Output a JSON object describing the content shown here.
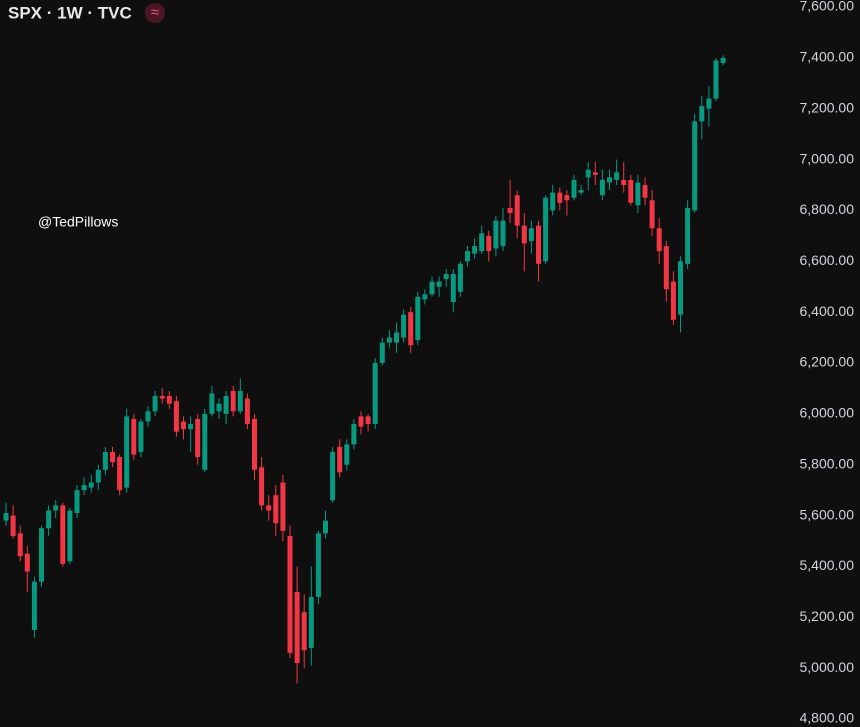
{
  "chart_data": {
    "type": "candlestick",
    "title": "SPX · 1W · TVC",
    "status_icon": "≈",
    "annotation": "@TedPillows",
    "up_color": "#089981",
    "down_color": "#f23645",
    "categories": [
      null,
      null,
      null,
      null,
      null,
      null,
      null,
      null,
      null,
      null,
      null,
      null,
      null,
      null,
      null,
      null,
      null,
      null,
      null,
      null,
      null,
      null,
      null,
      null,
      null,
      null,
      null,
      null,
      null,
      null,
      null,
      null,
      null,
      null,
      null,
      null,
      null,
      null,
      null,
      null,
      null,
      null,
      null,
      null,
      null,
      null,
      null,
      null,
      null,
      null,
      null,
      null,
      null,
      null,
      null,
      null,
      null,
      null,
      null,
      null,
      null,
      null,
      null,
      null,
      null,
      null,
      null,
      null,
      null,
      null,
      null,
      null,
      null,
      null,
      null,
      null,
      null,
      null,
      null,
      null,
      null,
      null,
      null,
      null,
      null,
      null,
      null,
      null,
      null,
      null,
      null,
      null,
      null,
      null,
      null,
      null,
      null,
      null,
      null,
      null,
      null,
      null
    ],
    "open": [
      5580,
      5600,
      5530,
      5450,
      5150,
      5340,
      5550,
      5620,
      5640,
      5420,
      5610,
      5700,
      5710,
      5730,
      5780,
      5850,
      5830,
      5710,
      5980,
      5850,
      5970,
      6010,
      6070,
      6070,
      6050,
      5970,
      5940,
      5980,
      5780,
      6000,
      6010,
      6000,
      6090,
      6010,
      6060,
      5980,
      5790,
      5640,
      5680,
      5730,
      5520,
      5300,
      5220,
      5080,
      5280,
      5530,
      5660,
      5870,
      5800,
      5880,
      5990,
      5990,
      5960,
      6200,
      6280,
      6280,
      6300,
      6400,
      6290,
      6450,
      6470,
      6500,
      6530,
      6440,
      6480,
      6600,
      6630,
      6640,
      6700,
      6650,
      6660,
      6810,
      6860,
      6740,
      6680,
      6740,
      6600,
      6800,
      6870,
      6860,
      6850,
      6870,
      6930,
      6950,
      6860,
      6910,
      6920,
      6920,
      6920,
      6820,
      6900,
      6840,
      6730,
      6660,
      6520,
      6390,
      6590,
      6800,
      7150,
      7200,
      7240,
      7380
    ],
    "high": [
      5650,
      5640,
      5560,
      5480,
      5360,
      5560,
      5640,
      5660,
      5650,
      5630,
      5720,
      5750,
      5760,
      5800,
      5870,
      5870,
      5840,
      6020,
      6000,
      5980,
      6030,
      6090,
      6100,
      6090,
      6070,
      5990,
      5990,
      6000,
      6020,
      6110,
      6060,
      6090,
      6110,
      6140,
      6080,
      6000,
      5830,
      5680,
      5720,
      5760,
      5560,
      5400,
      5290,
      5400,
      5540,
      5620,
      5870,
      5900,
      5900,
      5980,
      6010,
      6000,
      6220,
      6300,
      6330,
      6360,
      6410,
      6420,
      6480,
      6490,
      6540,
      6540,
      6570,
      6570,
      6600,
      6660,
      6690,
      6740,
      6720,
      6780,
      6810,
      6920,
      6880,
      6790,
      6760,
      6760,
      6860,
      6900,
      6890,
      6880,
      6940,
      6900,
      6990,
      6990,
      6960,
      6960,
      7000,
      6990,
      6940,
      6940,
      6930,
      6880,
      6770,
      6680,
      6560,
      6620,
      6840,
      7180,
      7250,
      7290,
      7400,
      7410
    ],
    "low": [
      5560,
      5510,
      5420,
      5300,
      5120,
      5320,
      5520,
      5590,
      5400,
      5410,
      5590,
      5680,
      5690,
      5700,
      5760,
      5790,
      5680,
      5690,
      5820,
      5830,
      5950,
      5990,
      6040,
      6020,
      5910,
      5900,
      5850,
      5800,
      5770,
      5990,
      5980,
      5960,
      5990,
      6000,
      5940,
      5740,
      5620,
      5580,
      5520,
      5500,
      5040,
      4940,
      5000,
      5010,
      5250,
      5510,
      5650,
      5750,
      5780,
      5860,
      5920,
      5930,
      5940,
      6190,
      6260,
      6240,
      6280,
      6240,
      6270,
      6430,
      6460,
      6460,
      6500,
      6400,
      6460,
      6580,
      6610,
      6630,
      6600,
      6620,
      6640,
      6750,
      6690,
      6560,
      6630,
      6520,
      6590,
      6780,
      6800,
      6780,
      6840,
      6860,
      6880,
      6900,
      6840,
      6880,
      6900,
      6870,
      6820,
      6790,
      6820,
      6700,
      6590,
      6440,
      6350,
      6320,
      6570,
      6790,
      7080,
      7130,
      7230,
      7370
    ],
    "close": [
      5610,
      5520,
      5440,
      5380,
      5340,
      5550,
      5620,
      5640,
      5410,
      5620,
      5700,
      5720,
      5730,
      5780,
      5850,
      5810,
      5700,
      5990,
      5840,
      5970,
      6010,
      6070,
      6060,
      6040,
      5930,
      5940,
      5960,
      5830,
      6000,
      6080,
      6040,
      6070,
      6010,
      6090,
      5960,
      5780,
      5640,
      5620,
      5570,
      5540,
      5060,
      5020,
      5070,
      5280,
      5530,
      5580,
      5850,
      5770,
      5880,
      5960,
      5950,
      5960,
      6200,
      6280,
      6300,
      6320,
      6390,
      6270,
      6460,
      6470,
      6520,
      6520,
      6550,
      6550,
      6590,
      6640,
      6660,
      6710,
      6640,
      6760,
      6760,
      6790,
      6740,
      6670,
      6730,
      6590,
      6850,
      6870,
      6830,
      6840,
      6920,
      6880,
      6960,
      6940,
      6920,
      6930,
      6950,
      6900,
      6830,
      6910,
      6850,
      6730,
      6640,
      6490,
      6370,
      6600,
      6810,
      7150,
      7210,
      7240,
      7390,
      7400
    ],
    "ylim": [
      4800,
      7600
    ],
    "yticks": [
      {
        "value": 4800,
        "label": "4,800.00"
      },
      {
        "value": 5000,
        "label": "5,000.00"
      },
      {
        "value": 5200,
        "label": "5,200.00"
      },
      {
        "value": 5400,
        "label": "5,400.00"
      },
      {
        "value": 5600,
        "label": "5,600.00"
      },
      {
        "value": 5800,
        "label": "5,800.00"
      },
      {
        "value": 6000,
        "label": "6,000.00"
      },
      {
        "value": 6200,
        "label": "6,200.00"
      },
      {
        "value": 6400,
        "label": "6,400.00"
      },
      {
        "value": 6600,
        "label": "6,600.00"
      },
      {
        "value": 6800,
        "label": "6,800.00"
      },
      {
        "value": 7000,
        "label": "7,000.00"
      },
      {
        "value": 7200,
        "label": "7,200.00"
      },
      {
        "value": 7400,
        "label": "7,400.00"
      },
      {
        "value": 7600,
        "label": "7,600.00"
      }
    ],
    "grid": false
  }
}
